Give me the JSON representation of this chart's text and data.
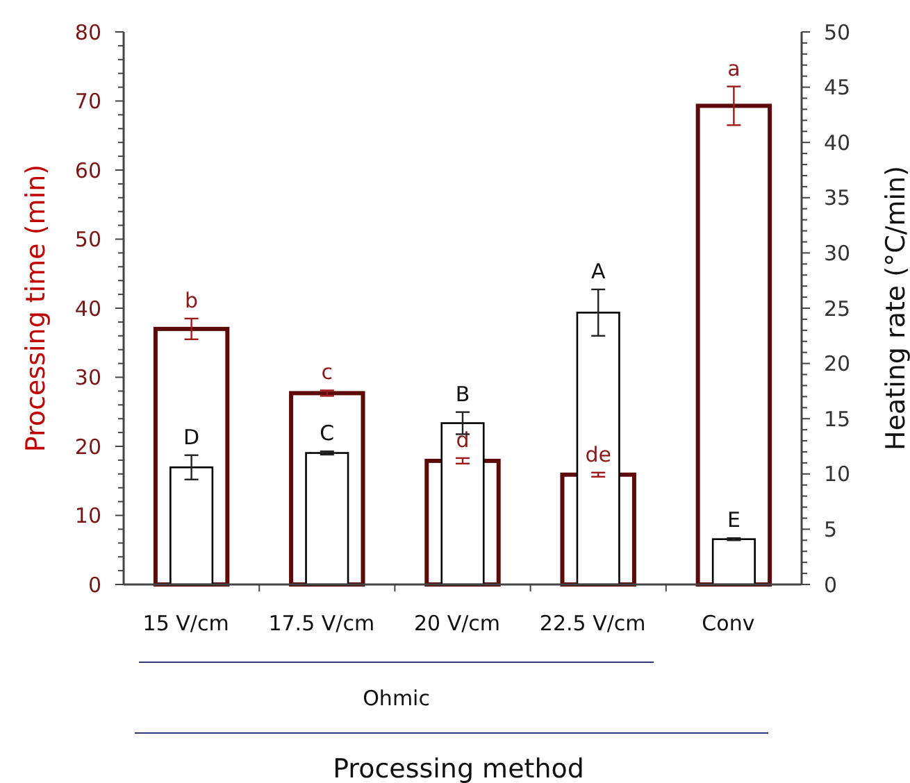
{
  "chart_data": {
    "type": "bar",
    "categories": [
      "15 V/cm",
      "17.5 V/cm",
      "20 V/cm",
      "22.5 V/cm",
      "Conv"
    ],
    "xlabel": "Processing method",
    "ylabel": "Processing time (min)",
    "y2label": "Heating rate (°C/min)",
    "annotations": [
      "Ohmic"
    ],
    "series": [
      {
        "color": "#5c0a0a",
        "values": [
          37,
          27.7,
          17.9,
          15.9,
          69.3
        ],
        "errors": [
          1.5,
          0.4,
          0.4,
          0.3,
          2.8
        ],
        "value_labels": [
          "b",
          "c",
          "d",
          "de",
          "a"
        ]
      },
      {
        "color": "#000000",
        "axis": "y2",
        "values": [
          10.6,
          11.9,
          14.6,
          24.6,
          4.1
        ],
        "errors": [
          1.1,
          0.15,
          1,
          2.1,
          0.1
        ],
        "value_labels": [
          "D",
          "C",
          "B",
          "A",
          "E"
        ]
      }
    ],
    "ylim": [
      0,
      80
    ],
    "yticks": [
      0,
      {
        "value": 2,
        "label": null
      },
      {
        "value": 4,
        "label": null
      },
      {
        "value": 6,
        "label": null
      },
      {
        "value": 8,
        "label": null
      },
      10,
      {
        "value": 12,
        "label": null
      },
      {
        "value": 14,
        "label": null
      },
      {
        "value": 16,
        "label": null
      },
      {
        "value": 18,
        "label": null
      },
      20,
      {
        "value": 22,
        "label": null
      },
      {
        "value": 24,
        "label": null
      },
      {
        "value": 26,
        "label": null
      },
      {
        "value": 28,
        "label": null
      },
      30,
      {
        "value": 32,
        "label": null
      },
      {
        "value": 34,
        "label": null
      },
      {
        "value": 36,
        "label": null
      },
      {
        "value": 38,
        "label": null
      },
      40,
      {
        "value": 42,
        "label": null
      },
      {
        "value": 44,
        "label": null
      },
      {
        "value": 46,
        "label": null
      },
      {
        "value": 48,
        "label": null
      },
      50,
      {
        "value": 52,
        "label": null
      },
      {
        "value": 54,
        "label": null
      },
      {
        "value": 56,
        "label": null
      },
      {
        "value": 58,
        "label": null
      },
      60,
      {
        "value": 62,
        "label": null
      },
      {
        "value": 64,
        "label": null
      },
      {
        "value": 66,
        "label": null
      },
      {
        "value": 68,
        "label": null
      },
      70,
      {
        "value": 72,
        "label": null
      },
      {
        "value": 74,
        "label": null
      },
      {
        "value": 76,
        "label": null
      },
      {
        "value": 78,
        "label": null
      },
      80
    ],
    "y2lim": [
      0,
      50
    ],
    "y2ticks": [
      0,
      {
        "value": 1,
        "label": null
      },
      {
        "value": 2,
        "label": null
      },
      {
        "value": 3,
        "label": null
      },
      {
        "value": 4,
        "label": null
      },
      5,
      {
        "value": 6,
        "label": null
      },
      {
        "value": 7,
        "label": null
      },
      {
        "value": 8,
        "label": null
      },
      {
        "value": 9,
        "label": null
      },
      10,
      {
        "value": 11,
        "label": null
      },
      {
        "value": 12,
        "label": null
      },
      {
        "value": 13,
        "label": null
      },
      {
        "value": 14,
        "label": null
      },
      15,
      {
        "value": 16,
        "label": null
      },
      {
        "value": 17,
        "label": null
      },
      {
        "value": 18,
        "label": null
      },
      {
        "value": 19,
        "label": null
      },
      20,
      {
        "value": 21,
        "label": null
      },
      {
        "value": 22,
        "label": null
      },
      {
        "value": 23,
        "label": null
      },
      {
        "value": 24,
        "label": null
      },
      25,
      {
        "value": 26,
        "label": null
      },
      {
        "value": 27,
        "label": null
      },
      {
        "value": 28,
        "label": null
      },
      {
        "value": 29,
        "label": null
      },
      30,
      {
        "value": 31,
        "label": null
      },
      {
        "value": 32,
        "label": null
      },
      {
        "value": 33,
        "label": null
      },
      {
        "value": 34,
        "label": null
      },
      35,
      {
        "value": 36,
        "label": null
      },
      {
        "value": 37,
        "label": null
      },
      {
        "value": 38,
        "label": null
      },
      {
        "value": 39,
        "label": null
      },
      40,
      {
        "value": 41,
        "label": null
      },
      {
        "value": 42,
        "label": null
      },
      {
        "value": 43,
        "label": null
      },
      {
        "value": 44,
        "label": null
      },
      45,
      {
        "value": 46,
        "label": null
      },
      {
        "value": 47,
        "label": null
      },
      {
        "value": 48,
        "label": null
      },
      {
        "value": 49,
        "label": null
      },
      50
    ]
  }
}
